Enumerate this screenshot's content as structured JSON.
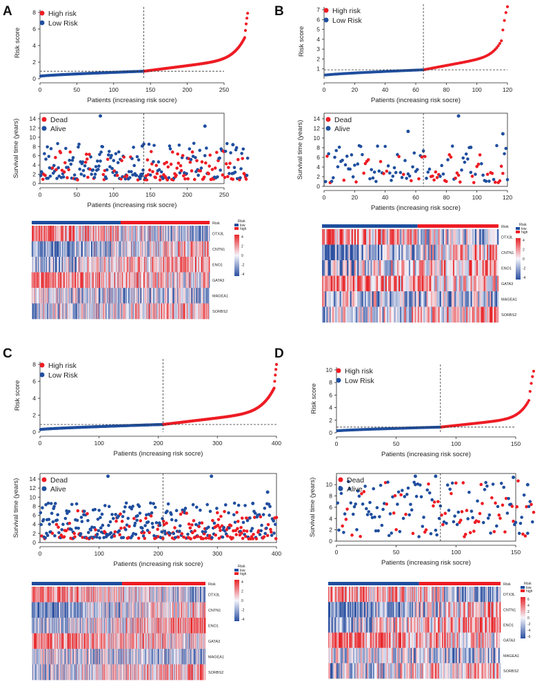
{
  "colors": {
    "high": "#ee1c24",
    "low": "#1f4e9e",
    "hm_low": "#2a4fa0",
    "hm_mid": "#f4f4fb",
    "hm_high": "#e8272a"
  },
  "chart_data": [
    {
      "panel": "A",
      "n": 282,
      "cutoff": 141,
      "risk_ylim": [
        0,
        8
      ],
      "risk_yticks": [
        0,
        2,
        4,
        6,
        8
      ],
      "risk_xticks": [
        0,
        50,
        100,
        150,
        200,
        250
      ],
      "risk_max": 7.9,
      "risk_min": 0.3,
      "threshold": 0.9,
      "surv_ylim": [
        0,
        14
      ],
      "surv_yticks": [
        0,
        2,
        4,
        6,
        8,
        10,
        12,
        14
      ],
      "surv_xticks": [
        0,
        50,
        100,
        150,
        200,
        250
      ],
      "highlights": [
        [
          82,
          14
        ],
        [
          224,
          11.8
        ],
        [
          139,
          7.5
        ],
        [
          262,
          7.8
        ]
      ],
      "legend_risk": [
        "High risk",
        "Low Risk"
      ],
      "legend_surv": [
        "Dead",
        "Alive"
      ]
    },
    {
      "panel": "B",
      "n": 120,
      "cutoff": 65,
      "risk_ylim": [
        0,
        7
      ],
      "risk_yticks": [
        1,
        2,
        3,
        4,
        5,
        6,
        7
      ],
      "risk_xticks": [
        0,
        20,
        40,
        60,
        80,
        100,
        120
      ],
      "risk_max": 7.3,
      "risk_min": 0.35,
      "threshold": 0.9,
      "surv_ylim": [
        0,
        14
      ],
      "surv_yticks": [
        0,
        2,
        4,
        6,
        8,
        10,
        12,
        14
      ],
      "surv_xticks": [
        0,
        20,
        40,
        60,
        80,
        100,
        120
      ],
      "highlights": [
        [
          88,
          14
        ],
        [
          55,
          10.8
        ],
        [
          117,
          10.3
        ],
        [
          96,
          7.5
        ]
      ],
      "legend_risk": [
        "High risk",
        "Low Risk"
      ],
      "legend_surv": [
        "Dead",
        "Alive"
      ]
    },
    {
      "panel": "C",
      "n": 400,
      "cutoff": 208,
      "risk_ylim": [
        0,
        8
      ],
      "risk_yticks": [
        0,
        2,
        4,
        6,
        8
      ],
      "risk_xticks": [
        0,
        100,
        200,
        300,
        400
      ],
      "risk_max": 8,
      "risk_min": 0.3,
      "threshold": 0.9,
      "surv_ylim": [
        0,
        14
      ],
      "surv_yticks": [
        0,
        2,
        4,
        6,
        8,
        10,
        12,
        14
      ],
      "surv_xticks": [
        0,
        100,
        200,
        300,
        400
      ],
      "highlights": [
        [
          115,
          14
        ],
        [
          290,
          14
        ],
        [
          385,
          10.5
        ],
        [
          360,
          8
        ]
      ],
      "legend_risk": [
        "High risk",
        "Low Risk"
      ],
      "legend_surv": [
        "Dead",
        "Alive"
      ]
    },
    {
      "panel": "D",
      "n": 165,
      "cutoff": 87,
      "risk_ylim": [
        0,
        10
      ],
      "risk_yticks": [
        0,
        2,
        4,
        6,
        8,
        10
      ],
      "risk_xticks": [
        0,
        50,
        100,
        150
      ],
      "risk_max": 9.8,
      "risk_min": 0.3,
      "threshold": 0.9,
      "surv_ylim": [
        0,
        11
      ],
      "surv_yticks": [
        0,
        2,
        4,
        6,
        8,
        10
      ],
      "surv_xticks": [
        0,
        50,
        100,
        150
      ],
      "highlights": [
        [
          83,
          11
        ],
        [
          148,
          10.8
        ],
        [
          66,
          11
        ],
        [
          160,
          9.5
        ]
      ],
      "legend_risk": [
        "High risk",
        "Low Risk"
      ],
      "legend_surv": [
        "Dead",
        "Alive"
      ]
    }
  ],
  "labels": {
    "risk_ylabel": "Risk score",
    "surv_ylabel": "Survival time (years)",
    "xlabel": "Patients (increasing risk socre)",
    "genes": [
      "DTX3L",
      "CNTN1",
      "ENO1",
      "GATA3",
      "MAGEA1",
      "SORBS2"
    ],
    "risk_track": "Risk",
    "legend_title": "Risk",
    "legend_low": "low",
    "legend_high": "high",
    "scale_ticks": [
      "4",
      "2",
      "0",
      "-2",
      "-4"
    ],
    "scale_ticks_d": [
      "6",
      "4",
      "2",
      "0",
      "-2",
      "-4",
      "-6"
    ]
  }
}
